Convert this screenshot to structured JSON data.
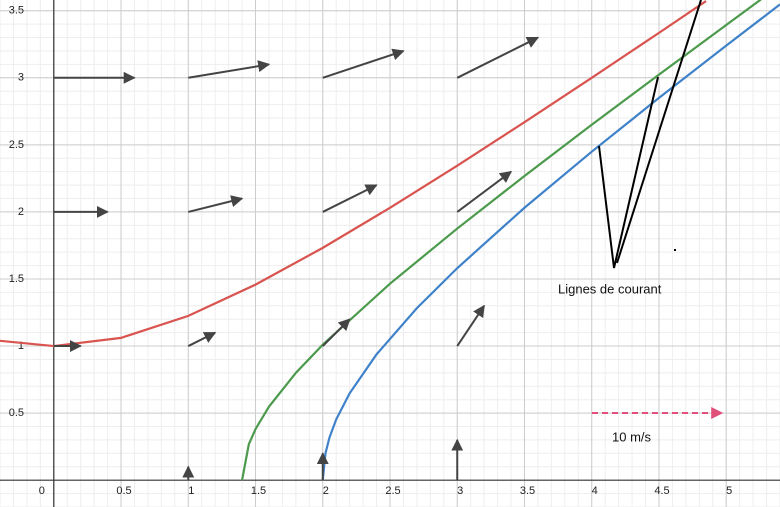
{
  "chart_data": {
    "type": "line",
    "xlim": [
      -0.4,
      5.4
    ],
    "ylim": [
      -0.2,
      3.58
    ],
    "xticks": [
      0,
      0.5,
      1,
      1.5,
      2,
      2.5,
      3,
      3.5,
      4,
      4.5,
      5
    ],
    "yticks": [
      0.5,
      1,
      1.5,
      2,
      2.5,
      3,
      3.5
    ],
    "grid": true,
    "series": [
      {
        "color": "#d9534f",
        "x": [
          -0.4,
          0,
          0.5,
          1,
          1.5,
          2,
          2.5,
          3,
          3.5,
          4,
          4.5,
          4.85
        ],
        "values": [
          1.039,
          1,
          1.061,
          1.225,
          1.458,
          1.732,
          2.031,
          2.345,
          2.669,
          3,
          3.335,
          3.572
        ]
      },
      {
        "color": "#4c9a4c",
        "x": [
          1.4,
          1.45,
          1.5,
          1.6,
          1.8,
          2,
          2.5,
          3,
          3.5,
          4,
          4.5,
          5,
          5.3
        ],
        "values": [
          0,
          0.267,
          0.381,
          0.548,
          0.8,
          1.01,
          1.465,
          1.876,
          2.268,
          2.65,
          3.024,
          3.394,
          3.615
        ]
      },
      {
        "color": "#3f82c9",
        "x": [
          2,
          2.02,
          2.05,
          2.1,
          2.2,
          2.4,
          2.7,
          3,
          3.5,
          4,
          4.5,
          5,
          5.4
        ],
        "values": [
          0,
          0.2,
          0.318,
          0.453,
          0.648,
          0.938,
          1.283,
          1.581,
          2.031,
          2.449,
          2.85,
          3.24,
          3.547
        ]
      }
    ],
    "arrows": {
      "color": "#444444",
      "x": [
        1,
        2,
        3,
        0,
        1,
        2,
        3,
        0,
        1,
        2,
        3,
        0,
        1,
        2,
        3
      ],
      "y": [
        0,
        0,
        0,
        1,
        1,
        1,
        1,
        2,
        2,
        2,
        2,
        3,
        3,
        3,
        3
      ],
      "u": [
        0,
        0,
        0,
        0.2,
        0.2,
        0.2,
        0.2,
        0.4,
        0.4,
        0.4,
        0.4,
        0.6,
        0.6,
        0.6,
        0.6
      ],
      "v": [
        0.1,
        0.2,
        0.3,
        0,
        0.1,
        0.2,
        0.3,
        0,
        0.1,
        0.2,
        0.3,
        0,
        0.1,
        0.2,
        0.3
      ]
    },
    "annotations": [
      "Lignes de courant",
      "10 m/s"
    ]
  }
}
